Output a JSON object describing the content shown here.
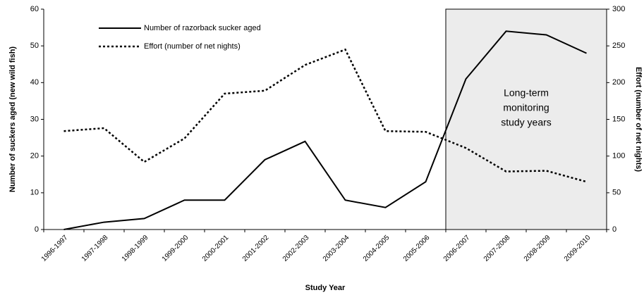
{
  "chart_data": {
    "type": "line",
    "categories": [
      "1996-1997",
      "1997-1998",
      "1998-1999",
      "1999-2000",
      "2000-2001",
      "2001-2002",
      "2002-2003",
      "2003-2004",
      "2004-2005",
      "2005-2006",
      "2006-2007",
      "2007-2008",
      "2008-2009",
      "2009-2010"
    ],
    "series": [
      {
        "name": "Number of razorback sucker aged",
        "color": "#000000",
        "dash": "solid",
        "values": [
          0,
          2,
          3,
          8,
          8,
          19,
          24,
          8,
          6,
          13,
          41,
          54,
          53,
          48
        ]
      },
      {
        "name": "Effort (number of net nights)",
        "color": "#000000",
        "dash": "dotted",
        "axis": "y2",
        "values": [
          134,
          138,
          92,
          124,
          185,
          189,
          224,
          245,
          134,
          133,
          111,
          79,
          80,
          65
        ]
      }
    ],
    "xlabel": "Study Year",
    "ylabel": "Number of suckers aged (new wild fish)",
    "y2label": "Effort (number of net nights)",
    "ylim": [
      0,
      60
    ],
    "yticks": [
      0,
      10,
      20,
      30,
      40,
      50,
      60
    ],
    "y2lim": [
      0,
      300
    ],
    "y2ticks": [
      0,
      50,
      100,
      150,
      200,
      250,
      300
    ],
    "shaded_from": "2006-2007",
    "annotation": [
      "Long-term",
      "monitoring",
      "study years"
    ],
    "legend": "upper left"
  }
}
